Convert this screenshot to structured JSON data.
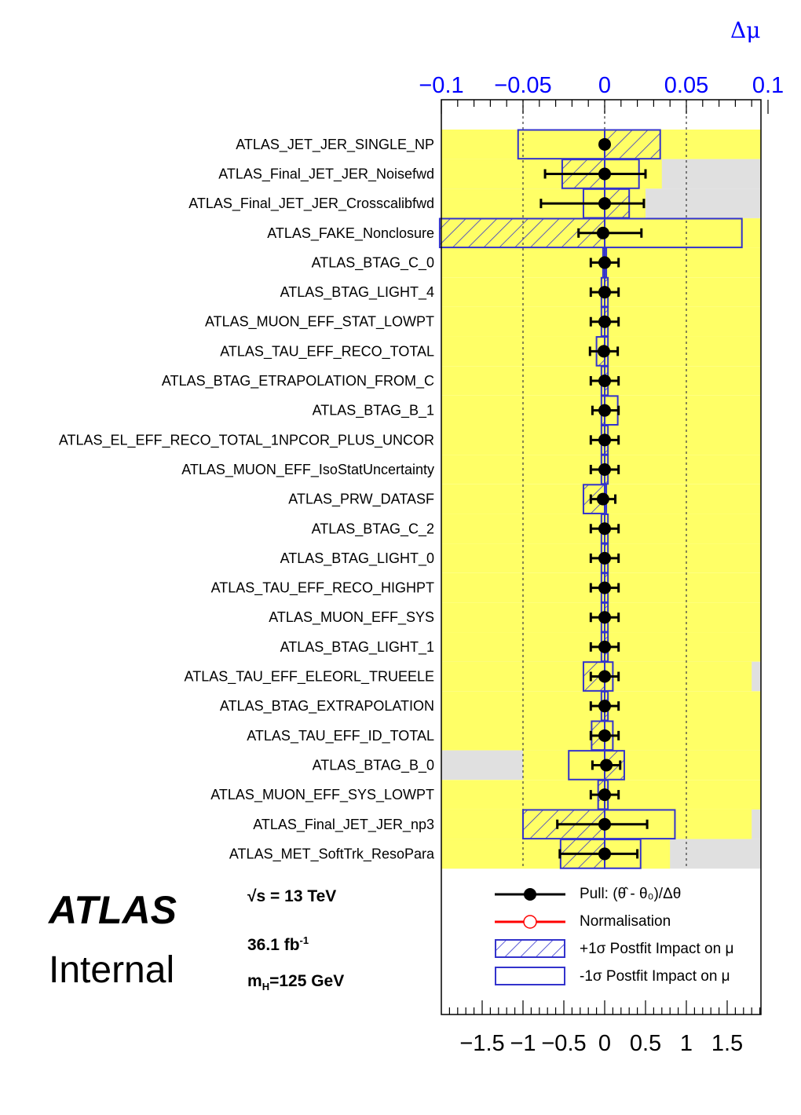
{
  "header": {
    "top_axis_title": "Δμ"
  },
  "atlas_label": {
    "experiment": "ATLAS",
    "status": "Internal"
  },
  "info": {
    "energy": "√s = 13 TeV",
    "lumi_value": "36.1 fb",
    "lumi_exp": "-1",
    "mass": "m",
    "mass_sub": "H",
    "mass_value": "=125 GeV"
  },
  "legend": {
    "pull": "Pull: (θ̂ - θ₀)/Δθ",
    "norm": "Normalisation",
    "plus": "+1σ Postfit Impact on μ",
    "minus": "-1σ Postfit Impact on μ"
  },
  "colors": {
    "yellow_band": "#ffff66",
    "grey_band": "#e0e0e0",
    "impact_box": "#3333cc",
    "top_axis": "#0000ff",
    "norm_marker": "#ff0000"
  },
  "chart_data": {
    "type": "ranking",
    "top_axis": {
      "label": "Δμ",
      "range": [
        -0.1,
        0.1
      ],
      "ticks": [
        "−0.1",
        "−0.05",
        "0",
        "0.05",
        "0.1"
      ]
    },
    "bottom_axis": {
      "label": "",
      "range": [
        -1.9,
        1.9
      ],
      "ticks": [
        "−1.5",
        "−1",
        "−0.5",
        "0",
        "0.5",
        "1",
        "1.5"
      ]
    },
    "reference_lines_dmu": [
      -0.05,
      0.05
    ],
    "parameters": [
      {
        "name": "ATLAS_JET_JER_SINGLE_NP",
        "pull": 0.0,
        "err_lo": 0.0,
        "err_hi": 0.0,
        "plus": 0.034,
        "minus": -0.053,
        "prefit_band": [
          -2.0,
          2.0
        ]
      },
      {
        "name": "ATLAS_Final_JET_JER_Noisefwd",
        "pull": 0.0,
        "err_lo": 0.73,
        "err_hi": 0.5,
        "plus": -0.026,
        "minus": 0.021,
        "prefit_band": [
          -2.0,
          0.7
        ]
      },
      {
        "name": "ATLAS_Final_JET_JER_Crosscalibfwd",
        "pull": 0.0,
        "err_lo": 0.78,
        "err_hi": 0.48,
        "plus": 0.015,
        "minus": -0.013,
        "prefit_band": [
          -2.0,
          0.5
        ]
      },
      {
        "name": "ATLAS_FAKE_Nonclosure",
        "pull": -0.02,
        "err_lo": 0.3,
        "err_hi": 0.47,
        "plus": -0.101,
        "minus": 0.084,
        "prefit_band": [
          -2.0,
          2.0
        ]
      },
      {
        "name": "ATLAS_BTAG_C_0",
        "pull": 0.0,
        "err_lo": 0.17,
        "err_hi": 0.17,
        "plus": 0.001,
        "minus": -0.001,
        "prefit_band": [
          -2.0,
          2.0
        ]
      },
      {
        "name": "ATLAS_BTAG_LIGHT_4",
        "pull": 0.0,
        "err_lo": 0.17,
        "err_hi": 0.17,
        "plus": 0.002,
        "minus": -0.002,
        "prefit_band": [
          -2.0,
          2.0
        ]
      },
      {
        "name": "ATLAS_MUON_EFF_STAT_LOWPT",
        "pull": 0.0,
        "err_lo": 0.17,
        "err_hi": 0.17,
        "plus": 0.002,
        "minus": -0.002,
        "prefit_band": [
          -2.0,
          2.0
        ]
      },
      {
        "name": "ATLAS_TAU_EFF_RECO_TOTAL",
        "pull": -0.01,
        "err_lo": 0.17,
        "err_hi": 0.17,
        "plus": -0.005,
        "minus": 0.002,
        "prefit_band": [
          -2.0,
          2.0
        ]
      },
      {
        "name": "ATLAS_BTAG_ETRAPOLATION_FROM_C",
        "pull": 0.0,
        "err_lo": 0.17,
        "err_hi": 0.17,
        "plus": 0.002,
        "minus": -0.002,
        "prefit_band": [
          -2.0,
          2.0
        ]
      },
      {
        "name": "ATLAS_BTAG_B_1",
        "pull": 0.0,
        "err_lo": 0.15,
        "err_hi": 0.17,
        "plus": -0.002,
        "minus": 0.008,
        "prefit_band": [
          -2.0,
          2.0
        ]
      },
      {
        "name": "ATLAS_EL_EFF_RECO_TOTAL_1NPCOR_PLUS_UNCOR",
        "pull": 0.0,
        "err_lo": 0.17,
        "err_hi": 0.17,
        "plus": 0.002,
        "minus": -0.002,
        "prefit_band": [
          -2.0,
          2.0
        ]
      },
      {
        "name": "ATLAS_MUON_EFF_IsoStatUncertainty",
        "pull": 0.0,
        "err_lo": 0.17,
        "err_hi": 0.17,
        "plus": 0.002,
        "minus": -0.002,
        "prefit_band": [
          -2.0,
          2.0
        ]
      },
      {
        "name": "ATLAS_PRW_DATASF",
        "pull": -0.02,
        "err_lo": 0.15,
        "err_hi": 0.15,
        "plus": -0.013,
        "minus": 0.001,
        "prefit_band": [
          -2.0,
          2.0
        ]
      },
      {
        "name": "ATLAS_BTAG_C_2",
        "pull": 0.0,
        "err_lo": 0.17,
        "err_hi": 0.17,
        "plus": 0.002,
        "minus": -0.002,
        "prefit_band": [
          -2.0,
          2.0
        ]
      },
      {
        "name": "ATLAS_BTAG_LIGHT_0",
        "pull": 0.0,
        "err_lo": 0.17,
        "err_hi": 0.17,
        "plus": 0.002,
        "minus": -0.002,
        "prefit_band": [
          -2.0,
          2.0
        ]
      },
      {
        "name": "ATLAS_TAU_EFF_RECO_HIGHPT",
        "pull": 0.0,
        "err_lo": 0.17,
        "err_hi": 0.17,
        "plus": 0.002,
        "minus": -0.002,
        "prefit_band": [
          -2.0,
          2.0
        ]
      },
      {
        "name": "ATLAS_MUON_EFF_SYS",
        "pull": 0.0,
        "err_lo": 0.17,
        "err_hi": 0.17,
        "plus": 0.002,
        "minus": -0.002,
        "prefit_band": [
          -2.0,
          2.0
        ]
      },
      {
        "name": "ATLAS_BTAG_LIGHT_1",
        "pull": 0.0,
        "err_lo": 0.17,
        "err_hi": 0.17,
        "plus": 0.002,
        "minus": -0.002,
        "prefit_band": [
          -2.0,
          2.0
        ]
      },
      {
        "name": "ATLAS_TAU_EFF_ELEORL_TRUEELE",
        "pull": 0.0,
        "err_lo": 0.17,
        "err_hi": 0.17,
        "plus": -0.013,
        "minus": 0.005,
        "prefit_band": [
          -2.0,
          1.8
        ]
      },
      {
        "name": "ATLAS_BTAG_EXTRAPOLATION",
        "pull": 0.0,
        "err_lo": 0.17,
        "err_hi": 0.17,
        "plus": 0.002,
        "minus": -0.002,
        "prefit_band": [
          -2.0,
          2.0
        ]
      },
      {
        "name": "ATLAS_TAU_EFF_ID_TOTAL",
        "pull": 0.0,
        "err_lo": 0.17,
        "err_hi": 0.17,
        "plus": -0.008,
        "minus": 0.005,
        "prefit_band": [
          -2.0,
          2.0
        ]
      },
      {
        "name": "ATLAS_BTAG_B_0",
        "pull": 0.02,
        "err_lo": 0.17,
        "err_hi": 0.17,
        "plus": 0.012,
        "minus": -0.022,
        "prefit_band": [
          -1.0,
          2.0
        ]
      },
      {
        "name": "ATLAS_MUON_EFF_SYS_LOWPT",
        "pull": 0.0,
        "err_lo": 0.17,
        "err_hi": 0.17,
        "plus": -0.004,
        "minus": 0.002,
        "prefit_band": [
          -2.0,
          2.0
        ]
      },
      {
        "name": "ATLAS_Final_JET_JER_np3",
        "pull": 0.0,
        "err_lo": 0.58,
        "err_hi": 0.52,
        "plus": -0.05,
        "minus": 0.043,
        "prefit_band": [
          -2.0,
          1.8
        ]
      },
      {
        "name": "ATLAS_MET_SoftTrk_ResoPara",
        "pull": 0.0,
        "err_lo": 0.55,
        "err_hi": 0.4,
        "plus": -0.027,
        "minus": 0.022,
        "prefit_band": [
          -2.0,
          0.8
        ]
      }
    ]
  }
}
